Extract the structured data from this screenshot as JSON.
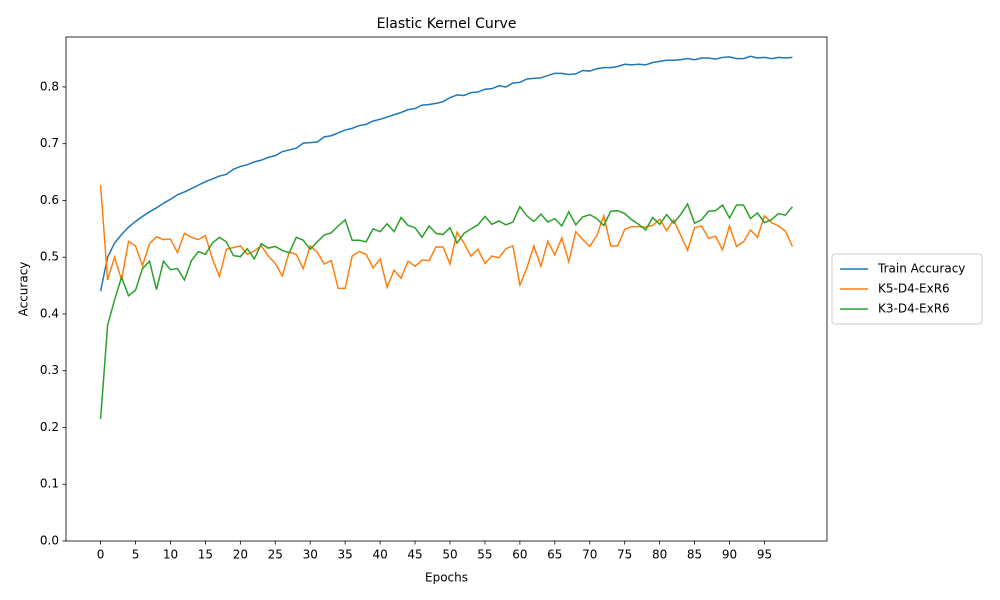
{
  "chart_data": {
    "type": "line",
    "title": "Elastic Kernel Curve",
    "x_label": "Epochs",
    "y_label": "Accuracy",
    "x": [
      0,
      1,
      2,
      3,
      4,
      5,
      6,
      7,
      8,
      9,
      10,
      11,
      12,
      13,
      14,
      15,
      16,
      17,
      18,
      19,
      20,
      21,
      22,
      23,
      24,
      25,
      26,
      27,
      28,
      29,
      30,
      31,
      32,
      33,
      34,
      35,
      36,
      37,
      38,
      39,
      40,
      41,
      42,
      43,
      44,
      45,
      46,
      47,
      48,
      49,
      50,
      51,
      52,
      53,
      54,
      55,
      56,
      57,
      58,
      59,
      60,
      61,
      62,
      63,
      64,
      65,
      66,
      67,
      68,
      69,
      70,
      71,
      72,
      73,
      74,
      75,
      76,
      77,
      78,
      79,
      80,
      81,
      82,
      83,
      84,
      85,
      86,
      87,
      88,
      89,
      90,
      91,
      92,
      93,
      94,
      95,
      96,
      97,
      98,
      99
    ],
    "series": [
      {
        "name": "Train Accuracy",
        "color": "#1f77b4",
        "values": [
          0.44,
          0.5,
          0.525,
          0.54,
          0.553,
          0.563,
          0.572,
          0.58,
          0.587,
          0.595,
          0.602,
          0.61,
          0.615,
          0.621,
          0.627,
          0.633,
          0.638,
          0.643,
          0.646,
          0.655,
          0.66,
          0.663,
          0.668,
          0.671,
          0.676,
          0.679,
          0.686,
          0.689,
          0.692,
          0.701,
          0.702,
          0.703,
          0.712,
          0.714,
          0.719,
          0.724,
          0.727,
          0.732,
          0.734,
          0.74,
          0.743,
          0.747,
          0.751,
          0.755,
          0.76,
          0.762,
          0.768,
          0.769,
          0.771,
          0.774,
          0.781,
          0.786,
          0.785,
          0.79,
          0.791,
          0.796,
          0.797,
          0.802,
          0.8,
          0.807,
          0.808,
          0.814,
          0.815,
          0.816,
          0.82,
          0.824,
          0.824,
          0.822,
          0.823,
          0.829,
          0.828,
          0.832,
          0.834,
          0.834,
          0.836,
          0.84,
          0.839,
          0.84,
          0.839,
          0.843,
          0.845,
          0.847,
          0.847,
          0.848,
          0.85,
          0.848,
          0.851,
          0.851,
          0.849,
          0.852,
          0.853,
          0.85,
          0.85,
          0.854,
          0.851,
          0.852,
          0.85,
          0.852,
          0.851,
          0.852
        ]
      },
      {
        "name": "K5-D4-ExR6",
        "color": "#ff7f0e",
        "values": [
          0.627,
          0.46,
          0.5,
          0.46,
          0.528,
          0.52,
          0.485,
          0.524,
          0.536,
          0.531,
          0.532,
          0.508,
          0.542,
          0.535,
          0.531,
          0.538,
          0.497,
          0.466,
          0.514,
          0.517,
          0.52,
          0.505,
          0.511,
          0.52,
          0.502,
          0.489,
          0.467,
          0.509,
          0.505,
          0.48,
          0.52,
          0.509,
          0.488,
          0.494,
          0.445,
          0.445,
          0.502,
          0.51,
          0.505,
          0.481,
          0.497,
          0.447,
          0.477,
          0.463,
          0.493,
          0.484,
          0.495,
          0.494,
          0.518,
          0.518,
          0.488,
          0.544,
          0.525,
          0.502,
          0.514,
          0.489,
          0.502,
          0.499,
          0.515,
          0.52,
          0.451,
          0.481,
          0.52,
          0.484,
          0.528,
          0.504,
          0.534,
          0.492,
          0.545,
          0.531,
          0.519,
          0.538,
          0.573,
          0.52,
          0.52,
          0.549,
          0.554,
          0.554,
          0.553,
          0.556,
          0.567,
          0.547,
          0.566,
          0.539,
          0.512,
          0.552,
          0.555,
          0.533,
          0.537,
          0.513,
          0.555,
          0.519,
          0.527,
          0.548,
          0.535,
          0.573,
          0.561,
          0.555,
          0.546,
          0.519
        ]
      },
      {
        "name": "K3-D4-ExR6",
        "color": "#2ca02c",
        "values": [
          0.215,
          0.38,
          0.425,
          0.465,
          0.432,
          0.442,
          0.48,
          0.493,
          0.443,
          0.493,
          0.478,
          0.48,
          0.46,
          0.494,
          0.51,
          0.505,
          0.525,
          0.535,
          0.527,
          0.503,
          0.501,
          0.515,
          0.497,
          0.524,
          0.516,
          0.519,
          0.512,
          0.508,
          0.535,
          0.53,
          0.514,
          0.527,
          0.539,
          0.543,
          0.555,
          0.566,
          0.53,
          0.53,
          0.527,
          0.55,
          0.545,
          0.559,
          0.545,
          0.57,
          0.556,
          0.552,
          0.535,
          0.555,
          0.542,
          0.54,
          0.552,
          0.525,
          0.542,
          0.55,
          0.557,
          0.572,
          0.558,
          0.564,
          0.557,
          0.562,
          0.589,
          0.573,
          0.563,
          0.576,
          0.562,
          0.568,
          0.555,
          0.58,
          0.557,
          0.571,
          0.575,
          0.568,
          0.556,
          0.581,
          0.582,
          0.577,
          0.566,
          0.558,
          0.548,
          0.57,
          0.558,
          0.575,
          0.56,
          0.575,
          0.594,
          0.56,
          0.566,
          0.581,
          0.582,
          0.592,
          0.569,
          0.592,
          0.592,
          0.568,
          0.578,
          0.561,
          0.566,
          0.577,
          0.574,
          0.589
        ]
      }
    ],
    "xlim": [
      -4.95,
      103.95
    ],
    "xticks": [
      0,
      5,
      10,
      15,
      20,
      25,
      30,
      35,
      40,
      45,
      50,
      55,
      60,
      65,
      70,
      75,
      80,
      85,
      90,
      95
    ],
    "ylim": [
      0,
      0.888
    ],
    "yticks": [
      {
        "value": 0,
        "label": "0.0"
      },
      0.1,
      0.2,
      0.3,
      0.4,
      0.5,
      0.6,
      0.7,
      0.8
    ],
    "grid": false,
    "legend": "right"
  }
}
